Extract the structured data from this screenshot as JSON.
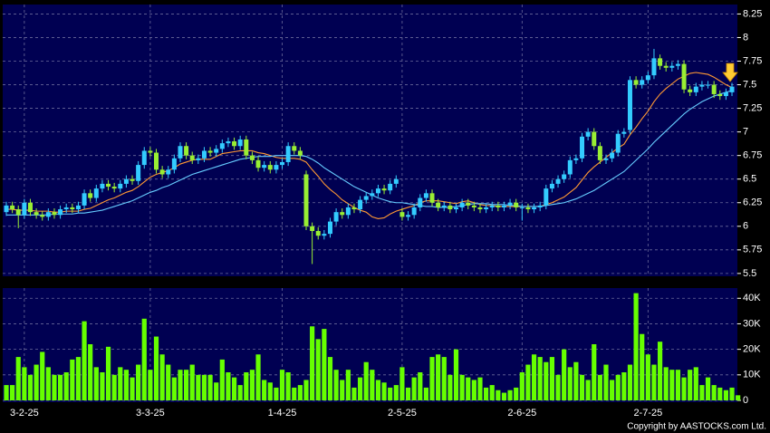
{
  "chart_data": {
    "type": "candlestick",
    "categories": [
      null,
      null,
      null,
      "3-2-25",
      null,
      null,
      null,
      null,
      null,
      null,
      null,
      null,
      null,
      null,
      null,
      null,
      null,
      null,
      null,
      null,
      null,
      null,
      null,
      null,
      "3-3-25",
      null,
      null,
      null,
      null,
      null,
      null,
      null,
      null,
      null,
      null,
      null,
      null,
      null,
      null,
      null,
      null,
      null,
      null,
      null,
      null,
      null,
      "1-4-25",
      null,
      null,
      null,
      null,
      null,
      null,
      null,
      null,
      null,
      null,
      null,
      null,
      null,
      null,
      null,
      null,
      null,
      null,
      null,
      "2-5-25",
      null,
      null,
      null,
      null,
      null,
      null,
      null,
      null,
      null,
      null,
      null,
      null,
      null,
      null,
      null,
      null,
      null,
      null,
      null,
      "2-6-25",
      null,
      null,
      null,
      null,
      null,
      null,
      null,
      null,
      null,
      null,
      null,
      null,
      null,
      null,
      null,
      null,
      null,
      null,
      null,
      null,
      "2-7-25",
      null,
      null,
      null,
      null,
      null,
      null,
      null,
      null,
      null,
      null,
      null,
      null,
      null,
      null
    ],
    "open": [
      6.15,
      6.22,
      6.18,
      6.12,
      6.25,
      6.15,
      6.12,
      6.1,
      6.15,
      6.12,
      6.18,
      6.2,
      6.18,
      6.22,
      6.35,
      6.3,
      6.4,
      6.45,
      6.42,
      6.4,
      6.45,
      6.5,
      6.48,
      6.65,
      6.8,
      6.78,
      6.6,
      6.55,
      6.6,
      6.72,
      6.85,
      6.75,
      6.7,
      6.72,
      6.8,
      6.78,
      6.82,
      6.88,
      6.9,
      6.85,
      6.92,
      6.75,
      6.7,
      6.62,
      6.65,
      6.6,
      6.65,
      6.68,
      6.85,
      6.8,
      6.55,
      6.0,
      5.95,
      5.9,
      5.92,
      6.05,
      6.15,
      6.12,
      6.2,
      6.18,
      6.28,
      6.32,
      6.35,
      6.4,
      6.38,
      6.45,
      6.15,
      6.1,
      6.12,
      6.2,
      6.3,
      6.35,
      6.25,
      6.2,
      6.22,
      6.18,
      6.2,
      6.25,
      6.22,
      6.2,
      6.18,
      6.2,
      6.22,
      6.2,
      6.22,
      6.25,
      6.2,
      6.2,
      6.18,
      6.2,
      6.22,
      6.4,
      6.45,
      6.5,
      6.55,
      6.7,
      6.72,
      6.95,
      7.0,
      6.85,
      6.7,
      6.72,
      6.78,
      6.98,
      7.02,
      7.55,
      7.5,
      7.55,
      7.6,
      7.78,
      7.7,
      7.68,
      7.7,
      7.72,
      7.45,
      7.42,
      7.48,
      7.5,
      7.5,
      7.4,
      7.38,
      7.42
    ],
    "high": [
      6.26,
      6.26,
      6.22,
      6.29,
      6.29,
      6.19,
      6.16,
      6.19,
      6.19,
      6.22,
      6.24,
      6.24,
      6.26,
      6.39,
      6.39,
      6.44,
      6.49,
      6.49,
      6.46,
      6.49,
      6.54,
      6.54,
      6.69,
      6.84,
      6.84,
      6.82,
      6.64,
      6.64,
      6.76,
      6.89,
      6.89,
      6.79,
      6.76,
      6.84,
      6.84,
      6.86,
      6.92,
      6.94,
      6.94,
      6.96,
      6.96,
      6.79,
      6.74,
      6.69,
      6.69,
      6.69,
      6.72,
      6.89,
      6.89,
      6.84,
      6.59,
      6.04,
      5.99,
      5.96,
      6.09,
      6.19,
      6.19,
      6.24,
      6.24,
      6.32,
      6.36,
      6.39,
      6.44,
      6.44,
      6.49,
      6.54,
      6.19,
      6.16,
      6.24,
      6.34,
      6.39,
      6.39,
      6.29,
      6.26,
      6.26,
      6.24,
      6.29,
      6.29,
      6.26,
      6.24,
      6.24,
      6.26,
      6.26,
      6.26,
      6.29,
      6.29,
      6.24,
      6.24,
      6.24,
      6.26,
      6.44,
      6.49,
      6.54,
      6.59,
      6.74,
      6.76,
      6.99,
      7.04,
      7.04,
      6.89,
      6.76,
      6.82,
      7.02,
      7.04,
      7.59,
      7.59,
      7.59,
      7.64,
      7.88,
      7.82,
      7.74,
      7.74,
      7.76,
      7.76,
      7.49,
      7.52,
      7.54,
      7.54,
      7.54,
      7.44,
      7.46,
      7.52
    ],
    "low": [
      6.11,
      6.14,
      5.98,
      6.08,
      6.11,
      6.08,
      6.06,
      6.06,
      6.08,
      6.08,
      6.14,
      6.14,
      6.14,
      6.18,
      6.26,
      6.26,
      6.36,
      6.38,
      6.36,
      6.36,
      6.41,
      6.44,
      6.44,
      6.61,
      6.74,
      6.56,
      6.51,
      6.51,
      6.56,
      6.68,
      6.71,
      6.66,
      6.66,
      6.68,
      6.74,
      6.74,
      6.78,
      6.84,
      6.81,
      6.81,
      6.71,
      6.66,
      6.58,
      6.58,
      6.56,
      6.56,
      6.61,
      6.64,
      6.76,
      6.71,
      5.96,
      5.6,
      5.86,
      5.86,
      5.88,
      6.01,
      6.08,
      6.08,
      6.14,
      6.14,
      6.24,
      6.28,
      6.31,
      6.34,
      6.34,
      6.41,
      6.06,
      6.06,
      6.08,
      6.16,
      6.26,
      6.21,
      6.16,
      6.16,
      6.14,
      6.14,
      6.16,
      6.18,
      6.16,
      6.14,
      6.14,
      6.16,
      6.16,
      6.16,
      6.18,
      6.16,
      6.06,
      6.14,
      6.14,
      6.16,
      6.18,
      6.36,
      6.41,
      6.46,
      6.51,
      6.66,
      6.68,
      6.91,
      6.81,
      6.66,
      6.66,
      6.68,
      6.74,
      6.94,
      6.98,
      7.46,
      7.46,
      7.51,
      7.56,
      7.66,
      7.64,
      7.64,
      7.66,
      7.41,
      7.38,
      7.38,
      7.44,
      7.46,
      7.36,
      7.34,
      7.34,
      7.38
    ],
    "close": [
      6.22,
      6.18,
      6.12,
      6.25,
      6.15,
      6.12,
      6.1,
      6.15,
      6.12,
      6.18,
      6.2,
      6.18,
      6.22,
      6.35,
      6.3,
      6.4,
      6.45,
      6.42,
      6.4,
      6.45,
      6.5,
      6.48,
      6.65,
      6.8,
      6.78,
      6.6,
      6.55,
      6.6,
      6.72,
      6.85,
      6.75,
      6.7,
      6.72,
      6.8,
      6.78,
      6.82,
      6.88,
      6.9,
      6.85,
      6.92,
      6.75,
      6.7,
      6.62,
      6.65,
      6.6,
      6.65,
      6.68,
      6.85,
      6.8,
      6.75,
      6.0,
      5.95,
      5.9,
      5.92,
      6.05,
      6.15,
      6.12,
      6.2,
      6.18,
      6.28,
      6.32,
      6.35,
      6.4,
      6.38,
      6.45,
      6.5,
      6.1,
      6.12,
      6.2,
      6.3,
      6.35,
      6.25,
      6.2,
      6.22,
      6.18,
      6.2,
      6.25,
      6.22,
      6.2,
      6.18,
      6.2,
      6.22,
      6.2,
      6.22,
      6.25,
      6.2,
      6.2,
      6.18,
      6.2,
      6.22,
      6.4,
      6.45,
      6.5,
      6.55,
      6.7,
      6.72,
      6.95,
      7.0,
      6.85,
      6.7,
      6.72,
      6.78,
      6.98,
      7.0,
      7.55,
      7.5,
      7.55,
      7.6,
      7.78,
      7.7,
      7.68,
      7.7,
      7.72,
      7.45,
      7.42,
      7.48,
      7.5,
      7.5,
      7.4,
      7.38,
      7.42,
      7.48
    ],
    "up_color": "#33ccff",
    "down_color": "#99ee33",
    "series": [
      {
        "color": "#ff9933",
        "values": [
          6.18,
          6.18,
          6.17,
          6.17,
          6.17,
          6.16,
          6.16,
          6.16,
          6.15,
          6.15,
          6.16,
          6.16,
          6.16,
          6.18,
          6.19,
          6.22,
          6.25,
          6.28,
          6.3,
          6.33,
          6.36,
          6.38,
          6.42,
          6.47,
          6.52,
          6.55,
          6.57,
          6.59,
          6.62,
          6.66,
          6.68,
          6.7,
          6.71,
          6.71,
          6.71,
          6.74,
          6.77,
          6.78,
          6.79,
          6.8,
          6.8,
          6.8,
          6.78,
          6.77,
          6.75,
          6.73,
          6.72,
          6.72,
          6.72,
          6.71,
          6.68,
          6.6,
          6.53,
          6.45,
          6.39,
          6.34,
          6.28,
          6.24,
          6.2,
          6.17,
          6.15,
          6.1,
          6.08,
          6.09,
          6.13,
          6.16,
          6.18,
          6.2,
          6.22,
          6.25,
          6.27,
          6.27,
          6.27,
          6.26,
          6.25,
          6.24,
          6.26,
          6.27,
          6.25,
          6.23,
          6.22,
          6.22,
          6.21,
          6.21,
          6.21,
          6.21,
          6.21,
          6.21,
          6.21,
          6.21,
          6.23,
          6.25,
          6.28,
          6.31,
          6.36,
          6.41,
          6.49,
          6.57,
          6.63,
          6.68,
          6.73,
          6.78,
          6.83,
          6.87,
          6.97,
          7.05,
          7.14,
          7.22,
          7.32,
          7.4,
          7.46,
          7.51,
          7.56,
          7.59,
          7.62,
          7.63,
          7.62,
          7.61,
          7.58,
          7.54,
          7.5,
          7.47
        ]
      },
      {
        "color": "#66ccff",
        "values": [
          6.12,
          6.12,
          6.12,
          6.12,
          6.12,
          6.12,
          6.12,
          6.12,
          6.13,
          6.13,
          6.13,
          6.13,
          6.14,
          6.14,
          6.15,
          6.16,
          6.17,
          6.19,
          6.21,
          6.23,
          6.25,
          6.27,
          6.3,
          6.33,
          6.36,
          6.38,
          6.41,
          6.43,
          6.46,
          6.49,
          6.52,
          6.55,
          6.57,
          6.59,
          6.61,
          6.63,
          6.65,
          6.67,
          6.69,
          6.71,
          6.72,
          6.73,
          6.74,
          6.74,
          6.74,
          6.75,
          6.75,
          6.75,
          6.75,
          6.75,
          6.74,
          6.71,
          6.67,
          6.62,
          6.58,
          6.54,
          6.5,
          6.46,
          6.42,
          6.39,
          6.36,
          6.33,
          6.3,
          6.28,
          6.26,
          6.25,
          6.25,
          6.24,
          6.23,
          6.22,
          6.21,
          6.21,
          6.2,
          6.2,
          6.2,
          6.21,
          6.22,
          6.23,
          6.24,
          6.24,
          6.24,
          6.23,
          6.23,
          6.23,
          6.22,
          6.22,
          6.21,
          6.21,
          6.21,
          6.21,
          6.22,
          6.23,
          6.24,
          6.25,
          6.27,
          6.29,
          6.32,
          6.35,
          6.38,
          6.42,
          6.46,
          6.5,
          6.54,
          6.58,
          6.64,
          6.7,
          6.76,
          6.82,
          6.89,
          6.95,
          7.01,
          7.07,
          7.13,
          7.19,
          7.24,
          7.28,
          7.32,
          7.35,
          7.38,
          7.4,
          7.42,
          7.44
        ]
      }
    ],
    "ylim": [
      5.47,
      8.35
    ],
    "yticks": [
      5.5,
      5.75,
      6,
      6.25,
      6.5,
      6.75,
      7,
      7.25,
      7.5,
      7.75,
      8,
      8.25
    ],
    "grid": true,
    "volume": {
      "color": "#66ff00",
      "values": [
        6000,
        6000,
        17000,
        13000,
        10000,
        14000,
        19000,
        13000,
        10000,
        10000,
        11000,
        16000,
        17000,
        31000,
        22000,
        13000,
        11000,
        21000,
        10000,
        13000,
        12000,
        9000,
        14000,
        32000,
        12000,
        25000,
        18000,
        14000,
        9000,
        12000,
        12000,
        14000,
        10000,
        10000,
        10000,
        7000,
        16000,
        11000,
        9000,
        6000,
        11000,
        12000,
        18000,
        8000,
        7000,
        5000,
        12000,
        11000,
        5000,
        6000,
        8000,
        29000,
        24000,
        28000,
        17000,
        12000,
        8000,
        12000,
        5000,
        9000,
        15000,
        12000,
        8000,
        7000,
        5000,
        6000,
        13000,
        5000,
        9000,
        11000,
        5000,
        17000,
        18000,
        17000,
        10000,
        20000,
        10000,
        9000,
        8000,
        9000,
        5000,
        6000,
        4000,
        3000,
        4000,
        5000,
        11000,
        14000,
        18000,
        17000,
        15000,
        17000,
        10000,
        20000,
        13000,
        15000,
        10000,
        8000,
        22000,
        10000,
        14000,
        8000,
        10000,
        11000,
        14000,
        42000,
        26000,
        18000,
        14000,
        23000,
        13000,
        12000,
        12000,
        9000,
        12000,
        13000,
        6000,
        9000,
        6000,
        5000,
        4000,
        5000,
        2000
      ],
      "ylim": [
        0,
        44000
      ],
      "yticks": [
        0,
        {
          "value": 10000,
          "label": "10K"
        },
        {
          "value": 20000,
          "label": "20K"
        },
        {
          "value": 30000,
          "label": "30K"
        },
        {
          "value": 40000,
          "label": "40K"
        }
      ]
    },
    "credit": "Copyright by AASTOCKS.com Ltd."
  }
}
